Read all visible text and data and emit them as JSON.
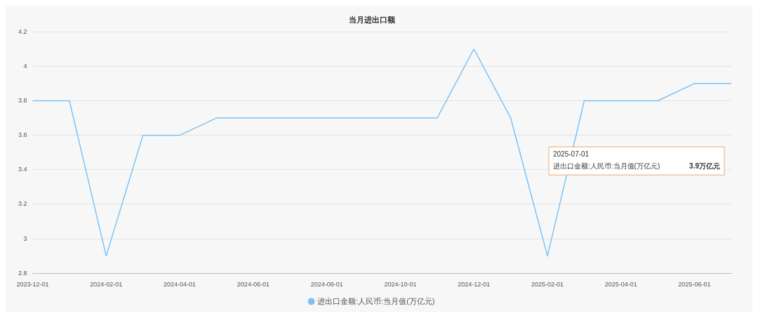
{
  "chart_data": {
    "type": "line",
    "title": "当月进出口额",
    "categories": [
      "2023-12-01",
      null,
      "2024-02-01",
      null,
      "2024-04-01",
      null,
      "2024-06-01",
      null,
      "2024-08-01",
      null,
      "2024-10-01",
      null,
      "2024-12-01",
      null,
      "2025-02-01",
      null,
      "2025-04-01",
      null,
      "2025-06-01",
      null
    ],
    "series": [
      {
        "name": "进出口金额:人民币:当月值(万亿元)",
        "color": "#7cc2f7",
        "values": [
          3.8,
          3.8,
          2.9,
          3.6,
          3.6,
          3.7,
          3.7,
          3.7,
          3.7,
          3.7,
          3.7,
          3.7,
          4.1,
          3.7,
          2.9,
          3.8,
          3.8,
          3.8,
          3.9,
          3.9
        ]
      }
    ],
    "ylim": [
      2.8,
      4.2
    ],
    "yticks": [
      2.8,
      3,
      3.2,
      3.4,
      3.6,
      3.8,
      4,
      4.2
    ],
    "grid": "y",
    "legend": "bottom",
    "marker": "none",
    "line_style": "solid",
    "annotations": [
      "2025-07-01",
      "进出口金额:人民币:当月值(万亿元)",
      "3.9万亿元"
    ]
  }
}
